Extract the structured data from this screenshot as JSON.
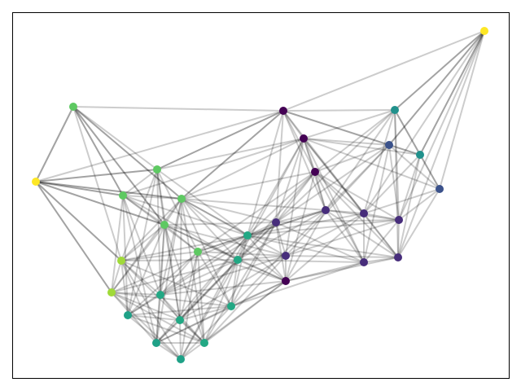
{
  "nodes": [
    {
      "color": "#fde725"
    },
    {
      "color": "#5ec962"
    },
    {
      "color": "#fde725"
    },
    {
      "color": "#440154"
    },
    {
      "color": "#21918c"
    },
    {
      "color": "#440154"
    },
    {
      "color": "#3b528b"
    },
    {
      "color": "#21918c"
    },
    {
      "color": "#440154"
    },
    {
      "color": "#5ec962"
    },
    {
      "color": "#5ec962"
    },
    {
      "color": "#5ec962"
    },
    {
      "color": "#3b528b"
    },
    {
      "color": "#472d7b"
    },
    {
      "color": "#472d7b"
    },
    {
      "color": "#472d7b"
    },
    {
      "color": "#472d7b"
    },
    {
      "color": "#5ec962"
    },
    {
      "color": "#22a884"
    },
    {
      "color": "#5ec962"
    },
    {
      "color": "#a0da39"
    },
    {
      "color": "#22a884"
    },
    {
      "color": "#472d7b"
    },
    {
      "color": "#472d7b"
    },
    {
      "color": "#472d7b"
    },
    {
      "color": "#440154"
    },
    {
      "color": "#a0da39"
    },
    {
      "color": "#22a884"
    },
    {
      "color": "#22a884"
    },
    {
      "color": "#1fa187"
    },
    {
      "color": "#22a884"
    },
    {
      "color": "#1fa187"
    },
    {
      "color": "#22a884"
    },
    {
      "color": "#1fa187"
    }
  ]
}
